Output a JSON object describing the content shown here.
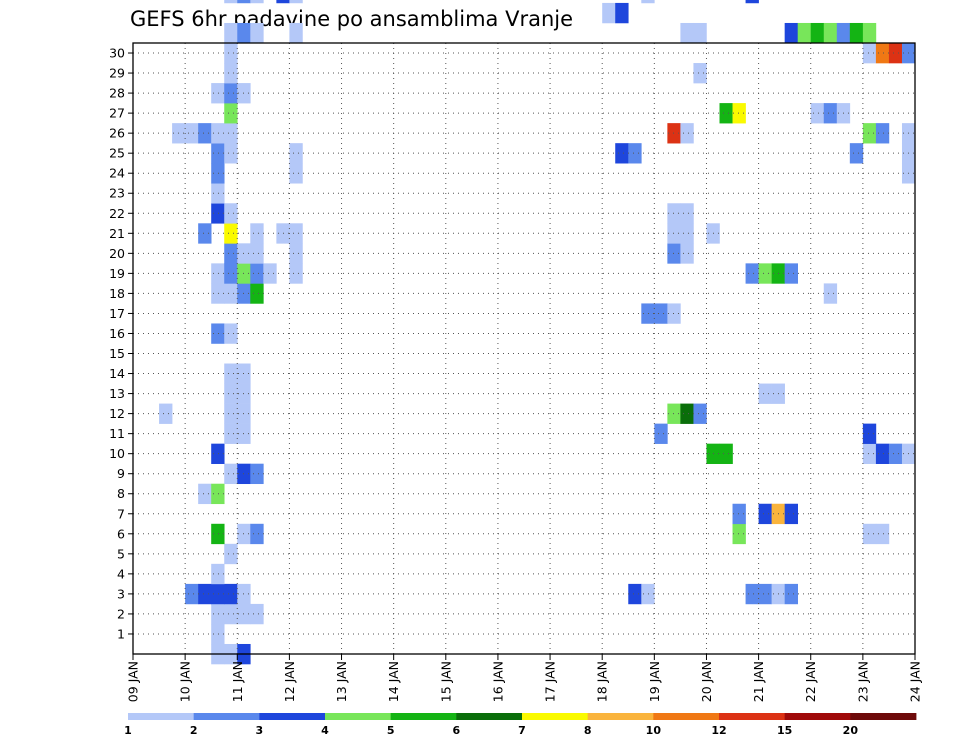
{
  "chart_data": {
    "type": "heatmap",
    "title": "GEFS 6hr padavine po ansamblima Vranje",
    "xlabel": "",
    "ylabel": "",
    "x_tick_labels": [
      "09 JAN",
      "10 JAN",
      "11 JAN",
      "12 JAN",
      "13 JAN",
      "14 JAN",
      "15 JAN",
      "16 JAN",
      "17 JAN",
      "18 JAN",
      "19 JAN",
      "20 JAN",
      "21 JAN",
      "22 JAN",
      "23 JAN",
      "24 JAN"
    ],
    "y_tick_labels": [
      "1",
      "2",
      "3",
      "4",
      "5",
      "6",
      "7",
      "8",
      "9",
      "10",
      "11",
      "12",
      "13",
      "14",
      "15",
      "16",
      "17",
      "18",
      "19",
      "20",
      "21",
      "22",
      "23",
      "24",
      "25",
      "26",
      "27",
      "28",
      "29",
      "30"
    ],
    "x_steps_per_day": 4,
    "member_range": [
      0,
      30
    ],
    "legend": {
      "labels": [
        "1",
        "2",
        "3",
        "4",
        "5",
        "6",
        "7",
        "8",
        "10",
        "12",
        "15",
        "20"
      ],
      "colors": [
        "#b4c8f8",
        "#5a88ec",
        "#1e46dc",
        "#78e65a",
        "#14b414",
        "#0a6e0a",
        "#fafa00",
        "#fab43c",
        "#f07814",
        "#dc3214",
        "#a00a0a",
        "#6e0a0a"
      ]
    },
    "cells": [
      {
        "member": 0,
        "step": 6,
        "value": 1.5
      },
      {
        "member": 0,
        "step": 7,
        "value": 1.5
      },
      {
        "member": 0,
        "step": 8,
        "value": 3.5
      },
      {
        "member": 1,
        "step": 6,
        "value": 1.5
      },
      {
        "member": 2,
        "step": 6,
        "value": 1.5
      },
      {
        "member": 2,
        "step": 7,
        "value": 1.5
      },
      {
        "member": 2,
        "step": 8,
        "value": 1.5
      },
      {
        "member": 2,
        "step": 9,
        "value": 1.5
      },
      {
        "member": 3,
        "step": 4,
        "value": 2.5
      },
      {
        "member": 3,
        "step": 5,
        "value": 3.5
      },
      {
        "member": 3,
        "step": 6,
        "value": 3.5
      },
      {
        "member": 3,
        "step": 7,
        "value": 3.5
      },
      {
        "member": 3,
        "step": 8,
        "value": 1.5
      },
      {
        "member": 3,
        "step": 38,
        "value": 3.5
      },
      {
        "member": 3,
        "step": 39,
        "value": 1.5
      },
      {
        "member": 3,
        "step": 47,
        "value": 2.5
      },
      {
        "member": 3,
        "step": 48,
        "value": 2.5
      },
      {
        "member": 3,
        "step": 49,
        "value": 1.5
      },
      {
        "member": 3,
        "step": 50,
        "value": 2.5
      },
      {
        "member": 4,
        "step": 6,
        "value": 1.5
      },
      {
        "member": 5,
        "step": 7,
        "value": 1.5
      },
      {
        "member": 6,
        "step": 6,
        "value": 5.5
      },
      {
        "member": 6,
        "step": 8,
        "value": 1.5
      },
      {
        "member": 6,
        "step": 9,
        "value": 2.5
      },
      {
        "member": 6,
        "step": 46,
        "value": 4.5
      },
      {
        "member": 6,
        "step": 56,
        "value": 1.5
      },
      {
        "member": 6,
        "step": 57,
        "value": 1.5
      },
      {
        "member": 7,
        "step": 46,
        "value": 2.5
      },
      {
        "member": 7,
        "step": 48,
        "value": 3.5
      },
      {
        "member": 7,
        "step": 49,
        "value": 9.0
      },
      {
        "member": 7,
        "step": 50,
        "value": 3.5
      },
      {
        "member": 8,
        "step": 5,
        "value": 1.5
      },
      {
        "member": 8,
        "step": 6,
        "value": 4.5
      },
      {
        "member": 9,
        "step": 7,
        "value": 1.5
      },
      {
        "member": 9,
        "step": 8,
        "value": 3.5
      },
      {
        "member": 9,
        "step": 9,
        "value": 2.5
      },
      {
        "member": 10,
        "step": 6,
        "value": 3.5
      },
      {
        "member": 10,
        "step": 44,
        "value": 5.5
      },
      {
        "member": 10,
        "step": 45,
        "value": 5.5
      },
      {
        "member": 10,
        "step": 56,
        "value": 1.5
      },
      {
        "member": 10,
        "step": 57,
        "value": 3.5
      },
      {
        "member": 10,
        "step": 58,
        "value": 2.5
      },
      {
        "member": 10,
        "step": 59,
        "value": 1.5
      },
      {
        "member": 11,
        "step": 7,
        "value": 1.5
      },
      {
        "member": 11,
        "step": 8,
        "value": 1.5
      },
      {
        "member": 11,
        "step": 40,
        "value": 2.5
      },
      {
        "member": 11,
        "step": 56,
        "value": 3.5
      },
      {
        "member": 12,
        "step": 2,
        "value": 1.5
      },
      {
        "member": 12,
        "step": 7,
        "value": 1.5
      },
      {
        "member": 12,
        "step": 8,
        "value": 1.5
      },
      {
        "member": 12,
        "step": 41,
        "value": 4.5
      },
      {
        "member": 12,
        "step": 42,
        "value": 6.5
      },
      {
        "member": 12,
        "step": 43,
        "value": 2.5
      },
      {
        "member": 13,
        "step": 7,
        "value": 1.5
      },
      {
        "member": 13,
        "step": 8,
        "value": 1.5
      },
      {
        "member": 13,
        "step": 48,
        "value": 1.5
      },
      {
        "member": 13,
        "step": 49,
        "value": 1.5
      },
      {
        "member": 14,
        "step": 7,
        "value": 1.5
      },
      {
        "member": 14,
        "step": 8,
        "value": 1.5
      },
      {
        "member": 16,
        "step": 6,
        "value": 2.5
      },
      {
        "member": 16,
        "step": 7,
        "value": 1.5
      },
      {
        "member": 17,
        "step": 39,
        "value": 2.5
      },
      {
        "member": 17,
        "step": 40,
        "value": 2.5
      },
      {
        "member": 17,
        "step": 41,
        "value": 1.5
      },
      {
        "member": 18,
        "step": 6,
        "value": 1.5
      },
      {
        "member": 18,
        "step": 7,
        "value": 1.5
      },
      {
        "member": 18,
        "step": 8,
        "value": 2.5
      },
      {
        "member": 18,
        "step": 9,
        "value": 5.5
      },
      {
        "member": 18,
        "step": 53,
        "value": 1.5
      },
      {
        "member": 19,
        "step": 6,
        "value": 1.5
      },
      {
        "member": 19,
        "step": 7,
        "value": 2.5
      },
      {
        "member": 19,
        "step": 8,
        "value": 4.5
      },
      {
        "member": 19,
        "step": 9,
        "value": 2.5
      },
      {
        "member": 19,
        "step": 10,
        "value": 1.5
      },
      {
        "member": 19,
        "step": 12,
        "value": 1.5
      },
      {
        "member": 19,
        "step": 47,
        "value": 2.5
      },
      {
        "member": 19,
        "step": 48,
        "value": 4.5
      },
      {
        "member": 19,
        "step": 49,
        "value": 5.5
      },
      {
        "member": 19,
        "step": 50,
        "value": 2.5
      },
      {
        "member": 20,
        "step": 7,
        "value": 2.5
      },
      {
        "member": 20,
        "step": 8,
        "value": 1.5
      },
      {
        "member": 20,
        "step": 9,
        "value": 1.5
      },
      {
        "member": 20,
        "step": 12,
        "value": 1.5
      },
      {
        "member": 20,
        "step": 41,
        "value": 2.5
      },
      {
        "member": 20,
        "step": 42,
        "value": 1.5
      },
      {
        "member": 21,
        "step": 5,
        "value": 2.5
      },
      {
        "member": 21,
        "step": 7,
        "value": 7.5
      },
      {
        "member": 21,
        "step": 9,
        "value": 1.5
      },
      {
        "member": 21,
        "step": 11,
        "value": 1.5
      },
      {
        "member": 21,
        "step": 12,
        "value": 1.5
      },
      {
        "member": 21,
        "step": 41,
        "value": 1.5
      },
      {
        "member": 21,
        "step": 42,
        "value": 1.5
      },
      {
        "member": 21,
        "step": 44,
        "value": 1.5
      },
      {
        "member": 22,
        "step": 6,
        "value": 3.5
      },
      {
        "member": 22,
        "step": 7,
        "value": 1.5
      },
      {
        "member": 22,
        "step": 41,
        "value": 1.5
      },
      {
        "member": 22,
        "step": 42,
        "value": 1.5
      },
      {
        "member": 23,
        "step": 6,
        "value": 1.5
      },
      {
        "member": 24,
        "step": 6,
        "value": 2.5
      },
      {
        "member": 24,
        "step": 12,
        "value": 1.5
      },
      {
        "member": 24,
        "step": 59,
        "value": 1.5
      },
      {
        "member": 25,
        "step": 6,
        "value": 2.5
      },
      {
        "member": 25,
        "step": 7,
        "value": 1.5
      },
      {
        "member": 25,
        "step": 12,
        "value": 1.5
      },
      {
        "member": 25,
        "step": 37,
        "value": 3.5
      },
      {
        "member": 25,
        "step": 38,
        "value": 2.5
      },
      {
        "member": 25,
        "step": 55,
        "value": 2.5
      },
      {
        "member": 25,
        "step": 59,
        "value": 1.5
      },
      {
        "member": 26,
        "step": 3,
        "value": 1.5
      },
      {
        "member": 26,
        "step": 4,
        "value": 1.5
      },
      {
        "member": 26,
        "step": 5,
        "value": 2.5
      },
      {
        "member": 26,
        "step": 6,
        "value": 1.5
      },
      {
        "member": 26,
        "step": 7,
        "value": 1.5
      },
      {
        "member": 26,
        "step": 41,
        "value": 13.0
      },
      {
        "member": 26,
        "step": 42,
        "value": 1.5
      },
      {
        "member": 26,
        "step": 56,
        "value": 4.5
      },
      {
        "member": 26,
        "step": 57,
        "value": 2.5
      },
      {
        "member": 26,
        "step": 59,
        "value": 1.5
      },
      {
        "member": 27,
        "step": 7,
        "value": 4.5
      },
      {
        "member": 27,
        "step": 45,
        "value": 5.5
      },
      {
        "member": 27,
        "step": 46,
        "value": 7.5
      },
      {
        "member": 27,
        "step": 52,
        "value": 1.5
      },
      {
        "member": 27,
        "step": 53,
        "value": 2.5
      },
      {
        "member": 27,
        "step": 54,
        "value": 1.5
      },
      {
        "member": 28,
        "step": 6,
        "value": 1.5
      },
      {
        "member": 28,
        "step": 7,
        "value": 2.5
      },
      {
        "member": 28,
        "step": 8,
        "value": 1.5
      },
      {
        "member": 29,
        "step": 7,
        "value": 1.5
      },
      {
        "member": 29,
        "step": 43,
        "value": 1.5
      },
      {
        "member": 30,
        "step": 7,
        "value": 1.5
      },
      {
        "member": 30,
        "step": 56,
        "value": 1.5
      },
      {
        "member": 30,
        "step": 57,
        "value": 11.0
      },
      {
        "member": 30,
        "step": 58,
        "value": 13.0
      },
      {
        "member": 30,
        "step": 59,
        "value": 2.5
      },
      {
        "member": 31,
        "step": 7,
        "value": 1.5
      },
      {
        "member": 31,
        "step": 8,
        "value": 2.5
      },
      {
        "member": 31,
        "step": 9,
        "value": 1.5
      },
      {
        "member": 31,
        "step": 12,
        "value": 1.5
      },
      {
        "member": 31,
        "step": 42,
        "value": 1.5
      },
      {
        "member": 31,
        "step": 43,
        "value": 1.5
      },
      {
        "member": 31,
        "step": 50,
        "value": 3.5
      },
      {
        "member": 31,
        "step": 51,
        "value": 4.5
      },
      {
        "member": 31,
        "step": 52,
        "value": 5.5
      },
      {
        "member": 31,
        "step": 53,
        "value": 4.5
      },
      {
        "member": 31,
        "step": 54,
        "value": 2.5
      },
      {
        "member": 31,
        "step": 55,
        "value": 5.5
      },
      {
        "member": 31,
        "step": 56,
        "value": 4.5
      },
      {
        "member": 32,
        "step": 36,
        "value": 1.5
      },
      {
        "member": 32,
        "step": 37,
        "value": 3.5
      },
      {
        "member": 33,
        "step": 7,
        "value": 1.5
      },
      {
        "member": 33,
        "step": 8,
        "value": 2.5
      },
      {
        "member": 33,
        "step": 9,
        "value": 1.5
      },
      {
        "member": 33,
        "step": 11,
        "value": 3.5
      },
      {
        "member": 33,
        "step": 12,
        "value": 1.5
      },
      {
        "member": 33,
        "step": 39,
        "value": 1.5
      },
      {
        "member": 33,
        "step": 47,
        "value": 3.5
      }
    ]
  }
}
